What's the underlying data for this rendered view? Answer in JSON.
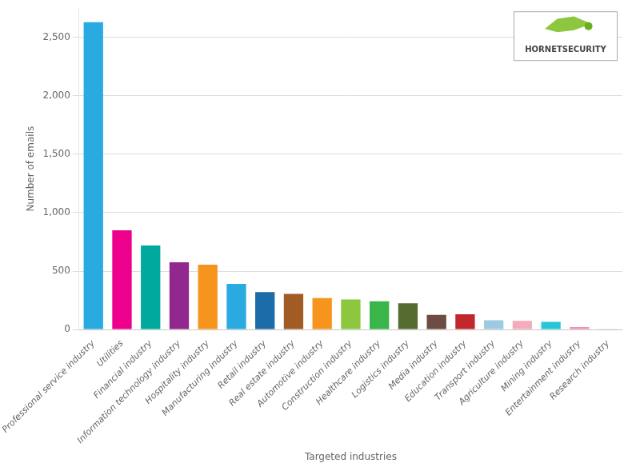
{
  "chart_data": {
    "type": "bar",
    "categories": [
      "Professional service industry",
      "Utilities",
      "Financial industry",
      "Information technology industry",
      "Hospitality industry",
      "Manufacturing industry",
      "Retail industry",
      "Real estate industry",
      "Automotive industry",
      "Construction industry",
      "Healthcare industry",
      "Logistics industry",
      "Media industry",
      "Education industry",
      "Transport industry",
      "Agriculture industry",
      "Mining industry",
      "Entertainment industry",
      "Research industry"
    ],
    "values": [
      2630,
      850,
      720,
      575,
      555,
      390,
      320,
      305,
      270,
      258,
      242,
      225,
      125,
      130,
      80,
      75,
      65,
      22,
      8
    ],
    "colors": [
      "#29ABE2",
      "#EC008C",
      "#00A99D",
      "#92278F",
      "#F7941D",
      "#29ABE2",
      "#1B6CA8",
      "#A05C24",
      "#F7941D",
      "#8DC63F",
      "#39B54A",
      "#556B2F",
      "#6D4C41",
      "#C1272D",
      "#9ECAE1",
      "#F4ACBA",
      "#26C6DA",
      "#F48FB1",
      "#DDDDDD"
    ],
    "xlabel": "Targeted industries",
    "ylabel": "Number of emails",
    "ylim": [
      0,
      2750
    ],
    "yticks": [
      0,
      500,
      {
        "value": 1000,
        "label": "1,000"
      },
      {
        "value": 1500,
        "label": "1,500"
      },
      {
        "value": 2000,
        "label": "2,000"
      },
      {
        "value": 2500,
        "label": "2,500"
      }
    ],
    "grid": true,
    "annotations": [
      "HORNETSECURITY"
    ]
  }
}
